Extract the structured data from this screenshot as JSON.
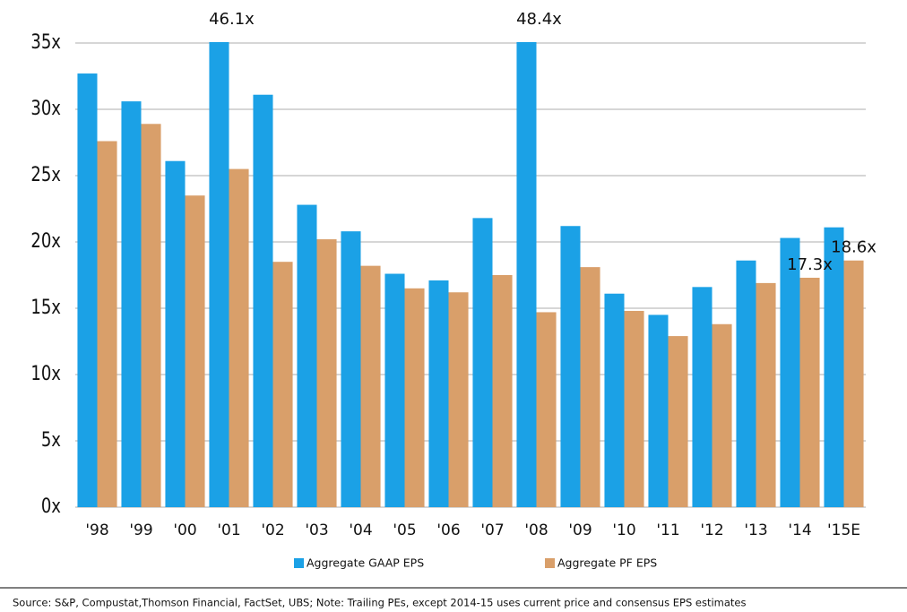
{
  "chart_data": {
    "type": "bar",
    "categories": [
      "'98",
      "'99",
      "'00",
      "'01",
      "'02",
      "'03",
      "'04",
      "'05",
      "'06",
      "'07",
      "'08",
      "'09",
      "'10",
      "'11",
      "'12",
      "'13",
      "'14",
      "'15E"
    ],
    "series": [
      {
        "name": "Aggregate GAAP EPS",
        "color": "#1ba1e6",
        "values": [
          32.7,
          30.6,
          26.1,
          46.1,
          31.1,
          22.8,
          20.8,
          17.6,
          17.1,
          21.8,
          48.4,
          21.2,
          16.1,
          14.5,
          16.6,
          18.6,
          20.3,
          21.1
        ],
        "value_labels": [
          null,
          null,
          null,
          "46.1x",
          null,
          null,
          null,
          null,
          null,
          null,
          "48.4x",
          null,
          null,
          null,
          null,
          null,
          null,
          null
        ]
      },
      {
        "name": "Aggregate PF EPS",
        "color": "#d99f6a",
        "values": [
          27.6,
          28.9,
          23.5,
          25.5,
          18.5,
          20.2,
          18.2,
          16.5,
          16.2,
          17.5,
          14.7,
          18.1,
          14.8,
          12.9,
          13.8,
          16.9,
          17.3,
          18.6
        ],
        "value_labels": [
          null,
          null,
          null,
          null,
          null,
          null,
          null,
          null,
          null,
          null,
          null,
          null,
          null,
          null,
          null,
          null,
          "17.3x",
          "18.6x"
        ]
      }
    ],
    "ylim": [
      0,
      35
    ],
    "yticks": [
      {
        "value": 0,
        "label": "0x"
      },
      {
        "value": 5,
        "label": "5x"
      },
      {
        "value": 10,
        "label": "10x"
      },
      {
        "value": 15,
        "label": "15x"
      },
      {
        "value": 20,
        "label": "20x"
      },
      {
        "value": 25,
        "label": "25x"
      },
      {
        "value": 30,
        "label": "30x"
      },
      {
        "value": 35,
        "label": "35x"
      }
    ],
    "grid": true,
    "source": "Source:  S&P, Compustat,Thomson Financial, FactSet, UBS; Note: Trailing PEs, except 2014-15 uses current price and consensus EPS estimates"
  }
}
